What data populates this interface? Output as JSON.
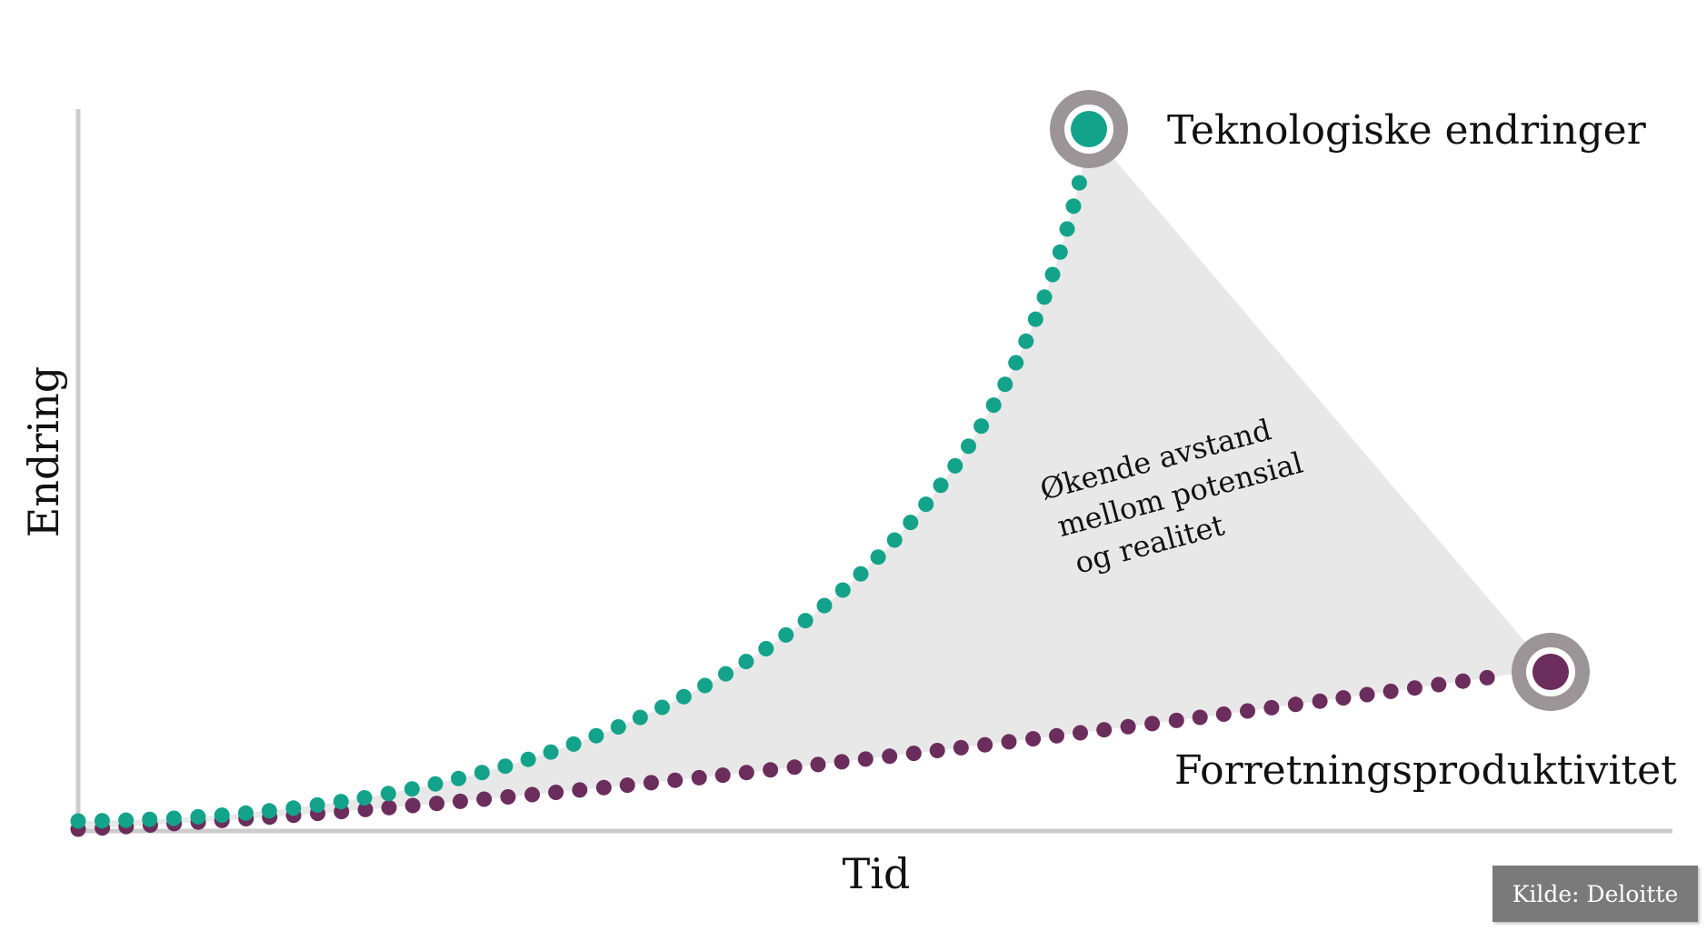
{
  "diagram": {
    "y_axis_label": "Endring",
    "x_axis_label": "Tid",
    "series": [
      {
        "name": "Teknologiske endringer",
        "color": "#13a38a"
      },
      {
        "name": "Forretningsproduktivitet",
        "color": "#6b2d5c"
      }
    ],
    "gap_label": [
      "Økende avstand",
      "mellom potensial",
      "og realitet"
    ],
    "source": "Kilde: Deloitte",
    "colors": {
      "gap_fill": "#e8e8e8",
      "marker_ring": "#9b9597",
      "axis": "#cccccc"
    }
  }
}
